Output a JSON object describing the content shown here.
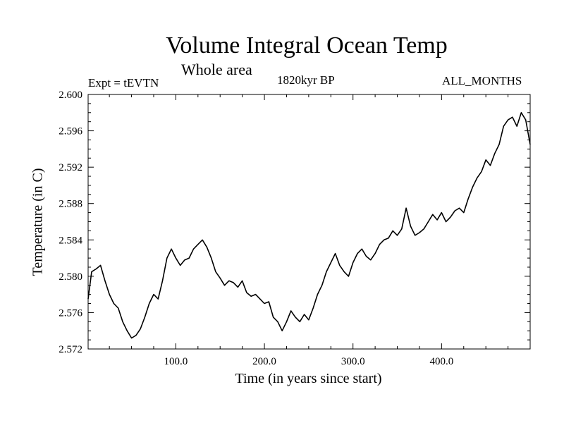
{
  "chart_data": {
    "type": "line",
    "title": "Volume Integral Ocean Temp",
    "subtitle": "Whole area",
    "experiment": "Expt = tEVTN",
    "period": "1820kyr BP",
    "months": "ALL_MONTHS",
    "xlabel": "Time (in years since start)",
    "ylabel": "Temperature (in C)",
    "xlim": [
      1,
      500
    ],
    "ylim": [
      2.572,
      2.6
    ],
    "x_ticks": [
      100,
      200,
      300,
      400
    ],
    "x_tick_labels": [
      "100.0",
      "200.0",
      "300.0",
      "400.0"
    ],
    "y_ticks": [
      2.572,
      2.576,
      2.58,
      2.584,
      2.588,
      2.592,
      2.596,
      2.6
    ],
    "y_tick_labels": [
      "2.572",
      "2.576",
      "2.580",
      "2.584",
      "2.588",
      "2.592",
      "2.596",
      "2.600"
    ],
    "series": [
      {
        "name": "Volume Integral Ocean Temp",
        "x": [
          1,
          5,
          10,
          15,
          20,
          25,
          30,
          35,
          40,
          45,
          50,
          55,
          60,
          65,
          70,
          75,
          80,
          85,
          90,
          95,
          100,
          105,
          110,
          115,
          120,
          125,
          130,
          135,
          140,
          145,
          150,
          155,
          160,
          165,
          170,
          175,
          180,
          185,
          190,
          195,
          200,
          205,
          210,
          215,
          220,
          225,
          230,
          235,
          240,
          245,
          250,
          255,
          260,
          265,
          270,
          275,
          280,
          285,
          290,
          295,
          300,
          305,
          310,
          315,
          320,
          325,
          330,
          335,
          340,
          345,
          350,
          355,
          360,
          365,
          370,
          375,
          380,
          385,
          390,
          395,
          400,
          405,
          410,
          415,
          420,
          425,
          430,
          435,
          440,
          445,
          450,
          455,
          460,
          465,
          470,
          475,
          480,
          485,
          490,
          495,
          500
        ],
        "values": [
          2.5775,
          2.5805,
          2.5808,
          2.5812,
          2.5795,
          2.578,
          2.577,
          2.5765,
          2.575,
          2.574,
          2.5732,
          2.5735,
          2.5742,
          2.5755,
          2.577,
          2.578,
          2.5775,
          2.5795,
          2.582,
          2.583,
          2.582,
          2.5812,
          2.5818,
          2.582,
          2.583,
          2.5835,
          2.584,
          2.5832,
          2.582,
          2.5805,
          2.5798,
          2.579,
          2.5795,
          2.5793,
          2.5788,
          2.5795,
          2.5782,
          2.5778,
          2.578,
          2.5775,
          2.577,
          2.5772,
          2.5755,
          2.575,
          2.574,
          2.575,
          2.5762,
          2.5755,
          2.575,
          2.5758,
          2.5752,
          2.5765,
          2.578,
          2.579,
          2.5805,
          2.5815,
          2.5825,
          2.5812,
          2.5805,
          2.58,
          2.5815,
          2.5825,
          2.583,
          2.5822,
          2.5818,
          2.5825,
          2.5835,
          2.584,
          2.5842,
          2.585,
          2.5845,
          2.5852,
          2.5875,
          2.5855,
          2.5845,
          2.5848,
          2.5852,
          2.586,
          2.5868,
          2.5862,
          2.587,
          2.586,
          2.5865,
          2.5872,
          2.5875,
          2.587,
          2.5885,
          2.5898,
          2.5908,
          2.5915,
          2.5928,
          2.5922,
          2.5935,
          2.5945,
          2.5965,
          2.5972,
          2.5975,
          2.5965,
          2.598,
          2.5972,
          2.5945
        ]
      }
    ]
  }
}
